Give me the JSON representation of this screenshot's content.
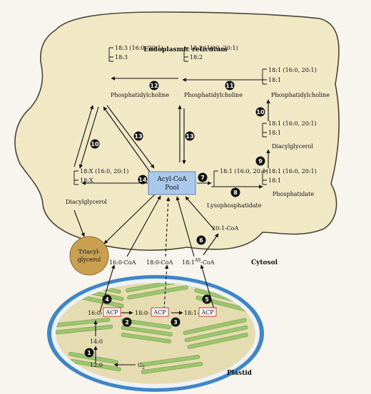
{
  "compartments": {
    "er": "Endoplasmic reticulum",
    "cytosol": "Cytosol",
    "plastid": "Plastid"
  },
  "pool": {
    "line1": "Acyl-CoA",
    "line2": "Pool"
  },
  "er_species": {
    "pc_183": {
      "line1": "18:3 (16:0, 20:1)",
      "line2": "18:3",
      "name": "Phosphatidylcholine"
    },
    "pc_182": {
      "line1": "18:2 (16:0, 20:1)",
      "line2": "18:2",
      "name": "Phosphatidylcholine"
    },
    "pc_181": {
      "line1": "18:1 (16:0, 20:1)",
      "line2": "18:1",
      "name": "Phosphatidylcholine"
    },
    "dag_181": {
      "line1": "18:1 (16:0, 20:1)",
      "line2": "18:1",
      "name": "Diacylglycerol"
    },
    "dag_18x": {
      "line1": "18:X (16:0, 20:1)",
      "line2": "18:X",
      "name": "Diacylglycerol"
    },
    "lpa": {
      "line1": "18:1 (16:0, 20:1)",
      "name": "Lysophosphatidate"
    },
    "pa": {
      "line1": "18:1 (16:0, 20:1)",
      "line2": "18:1",
      "name": "Phosphatidate"
    }
  },
  "tag": {
    "line1": "Triacyl-",
    "line2": "glycerol"
  },
  "cytosol_acyl": {
    "c201": "20:1-CoA",
    "c160": "16:0-CoA",
    "c180": "18:0-CoA",
    "c181": "18:1",
    "c181_sup": "Δ9",
    "c181_suffix": "-CoA"
  },
  "plastid_items": {
    "c160": "16:0-",
    "c180": "18:0-",
    "c181": "18:1-",
    "acp": "ACP",
    "c140": "14:0",
    "c120": "12:0",
    "c2": "C",
    "c2_sub": "2"
  },
  "steps": [
    "1",
    "2",
    "3",
    "4",
    "5",
    "6",
    "7",
    "8",
    "9",
    "10",
    "11",
    "12",
    "13",
    "14"
  ],
  "colors": {
    "er_fill": "#f1e8c6",
    "er_stroke": "#4a4535",
    "pool_fill": "#a9c8ec",
    "tag_fill": "#c9a050",
    "plastid_envelope": "#3f86c9",
    "plastid_stroma": "#e5dcb1",
    "thylakoid": "#9cc56e",
    "acp_border": "#d03c2e",
    "background": "#f7f5ee"
  }
}
